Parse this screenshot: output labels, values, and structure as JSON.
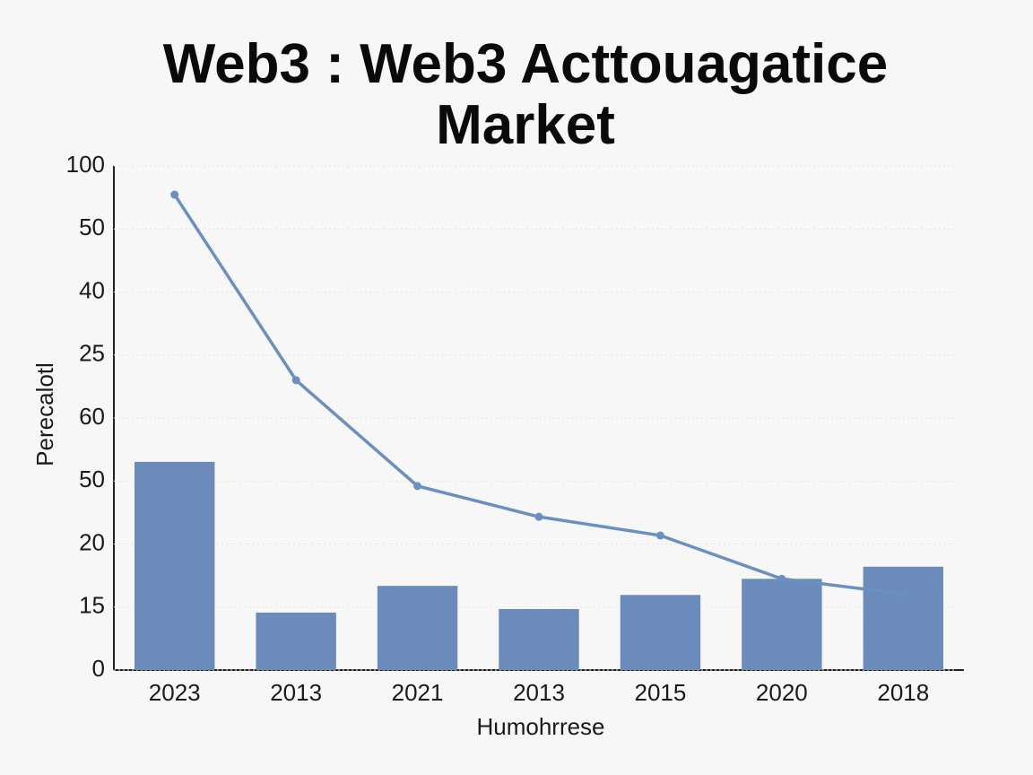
{
  "chart_data": {
    "type": "bar",
    "title": "Web3 : Web3 Acttouagatice Market",
    "x_label": "Humohrrese",
    "y_label": "Perecalotl",
    "categories": [
      "2023",
      "2013",
      "2021",
      "2013",
      "2015",
      "2020",
      "2018"
    ],
    "series": [
      {
        "type": "bar",
        "color": "#6b8cba",
        "values": [
          41.3,
          11.4,
          16.7,
          12.1,
          14.9,
          18.1,
          20.5
        ]
      },
      {
        "type": "line",
        "color": "#6a8fc0",
        "values": [
          94.3,
          57.5,
          36.5,
          30.4,
          26.7,
          18.1,
          15.1
        ]
      }
    ],
    "ylim": [
      0,
      100
    ],
    "yticks": [
      0,
      {
        "value": 12.5,
        "label": "15"
      },
      {
        "value": 25,
        "label": "20"
      },
      {
        "value": 37.5,
        "label": "50"
      },
      {
        "value": 50,
        "label": "60"
      },
      {
        "value": 62.5,
        "label": "25"
      },
      {
        "value": 75,
        "label": "40"
      },
      {
        "value": 87.5,
        "label": "50"
      },
      100
    ],
    "grid": true
  }
}
